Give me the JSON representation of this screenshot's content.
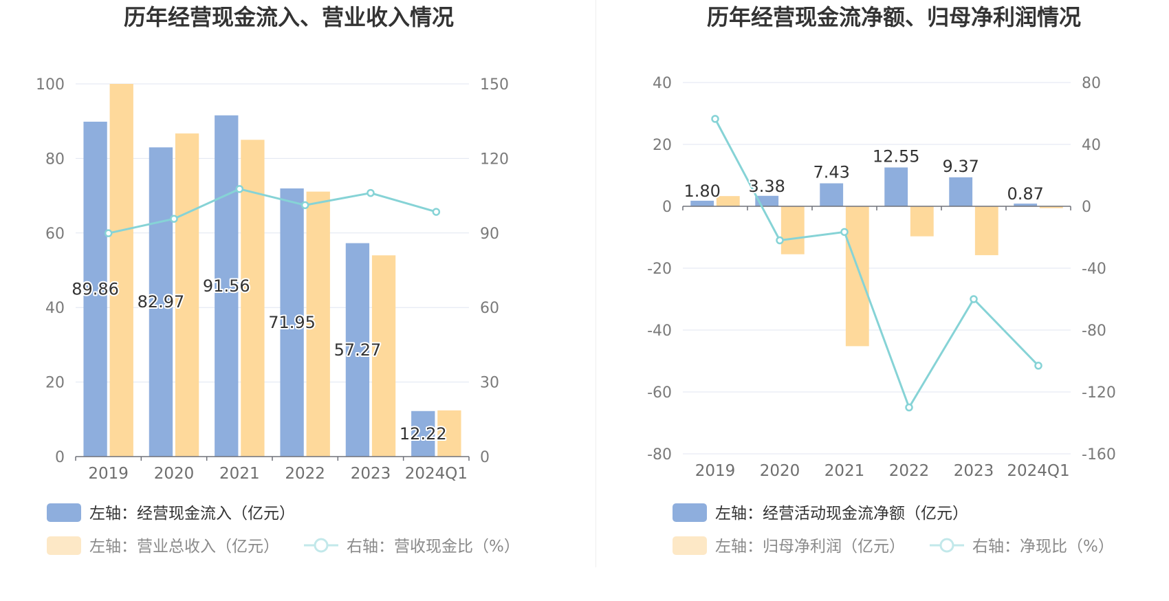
{
  "chart_data": [
    {
      "type": "bar",
      "title": "历年经营现金流入、营业收入情况",
      "categories": [
        "2019",
        "2020",
        "2021",
        "2022",
        "2023",
        "2024Q1"
      ],
      "left_axis": {
        "min": 0,
        "max": 100,
        "ticks": [
          "0",
          "20",
          "40",
          "60",
          "80",
          "100"
        ]
      },
      "right_axis": {
        "min": 0,
        "max": 150,
        "ticks": [
          "0",
          "30",
          "60",
          "90",
          "120",
          "150"
        ]
      },
      "grid": true,
      "legend_position": "bottom-left",
      "series": [
        {
          "name": "左轴：经营现金流入（亿元）",
          "kind": "bar",
          "axis": "left",
          "color": "#8eaedd",
          "values": [
            89.86,
            82.97,
            91.56,
            71.95,
            57.27,
            12.22
          ],
          "labels": [
            "89.86",
            "82.97",
            "91.56",
            "71.95",
            "57.27",
            "12.22"
          ]
        },
        {
          "name": "左轴：营业总收入（亿元）",
          "kind": "bar",
          "axis": "left",
          "color": "#fed99b",
          "values": [
            100.0,
            86.7,
            85.0,
            71.1,
            54.0,
            12.4
          ]
        },
        {
          "name": "右轴：营收现金比（%）",
          "kind": "line",
          "axis": "right",
          "color": "#86d3d6",
          "values": [
            89.9,
            95.7,
            107.7,
            101.2,
            106.1,
            98.5
          ]
        }
      ]
    },
    {
      "type": "bar",
      "title": "历年经营现金流净额、归母净利润情况",
      "categories": [
        "2019",
        "2020",
        "2021",
        "2022",
        "2023",
        "2024Q1"
      ],
      "left_axis": {
        "min": -80,
        "max": 40,
        "ticks": [
          "-80",
          "-60",
          "-40",
          "-20",
          "0",
          "20",
          "40"
        ]
      },
      "right_axis": {
        "min": -160,
        "max": 80,
        "ticks": [
          "-160",
          "-120",
          "-80",
          "-40",
          "0",
          "40",
          "80"
        ]
      },
      "grid": true,
      "legend_position": "bottom-left",
      "series": [
        {
          "name": "左轴：经营活动现金流净额（亿元）",
          "kind": "bar",
          "axis": "left",
          "color": "#8eaedd",
          "values": [
            1.8,
            3.38,
            7.43,
            12.55,
            9.37,
            0.87
          ],
          "labels": [
            "1.80",
            "3.38",
            "7.43",
            "12.55",
            "9.37",
            "0.87"
          ]
        },
        {
          "name": "左轴：归母净利润（亿元）",
          "kind": "bar",
          "axis": "left",
          "color": "#fed99b",
          "values": [
            3.3,
            -15.5,
            -45.2,
            -9.7,
            -15.8,
            -0.6
          ]
        },
        {
          "name": "右轴：净现比（%）",
          "kind": "line",
          "axis": "right",
          "color": "#86d3d6",
          "values": [
            56.5,
            -22.0,
            -16.6,
            -130.0,
            -60.0,
            -103.0
          ]
        }
      ]
    }
  ]
}
